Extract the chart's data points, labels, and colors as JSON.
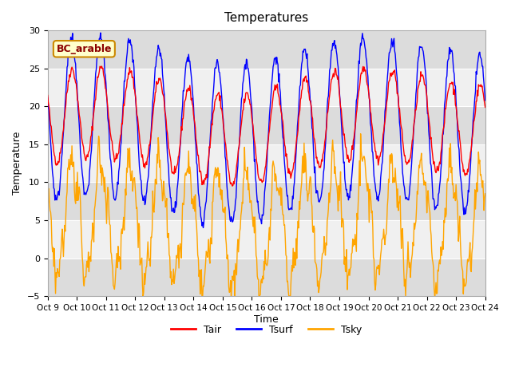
{
  "title": "Temperatures",
  "xlabel": "Time",
  "ylabel": "Temperature",
  "ylim": [
    -5,
    30
  ],
  "xlim": [
    0,
    360
  ],
  "plot_bg_color": "#ffffff",
  "band_color_dark": "#dcdcdc",
  "band_color_light": "#f0f0f0",
  "legend_labels": [
    "Tair",
    "Tsurf",
    "Tsky"
  ],
  "legend_colors": [
    "red",
    "blue",
    "orange"
  ],
  "annotation_text": "BC_arable",
  "annotation_bg": "#ffffcc",
  "annotation_border": "#cc8800",
  "tick_labels": [
    "Oct 9",
    "Oct 10",
    "Oct 11",
    "Oct 12",
    "Oct 13",
    "Oct 14",
    "Oct 15",
    "Oct 16",
    "Oct 17",
    "Oct 18",
    "Oct 19",
    "Oct 20",
    "Oct 21",
    "Oct 22",
    "Oct 23",
    "Oct 24"
  ],
  "tick_positions": [
    0,
    24,
    48,
    72,
    96,
    120,
    144,
    168,
    192,
    216,
    240,
    264,
    288,
    312,
    336,
    360
  ],
  "yticks": [
    -5,
    0,
    5,
    10,
    15,
    20,
    25,
    30
  ],
  "n_points": 721,
  "seed": 42
}
